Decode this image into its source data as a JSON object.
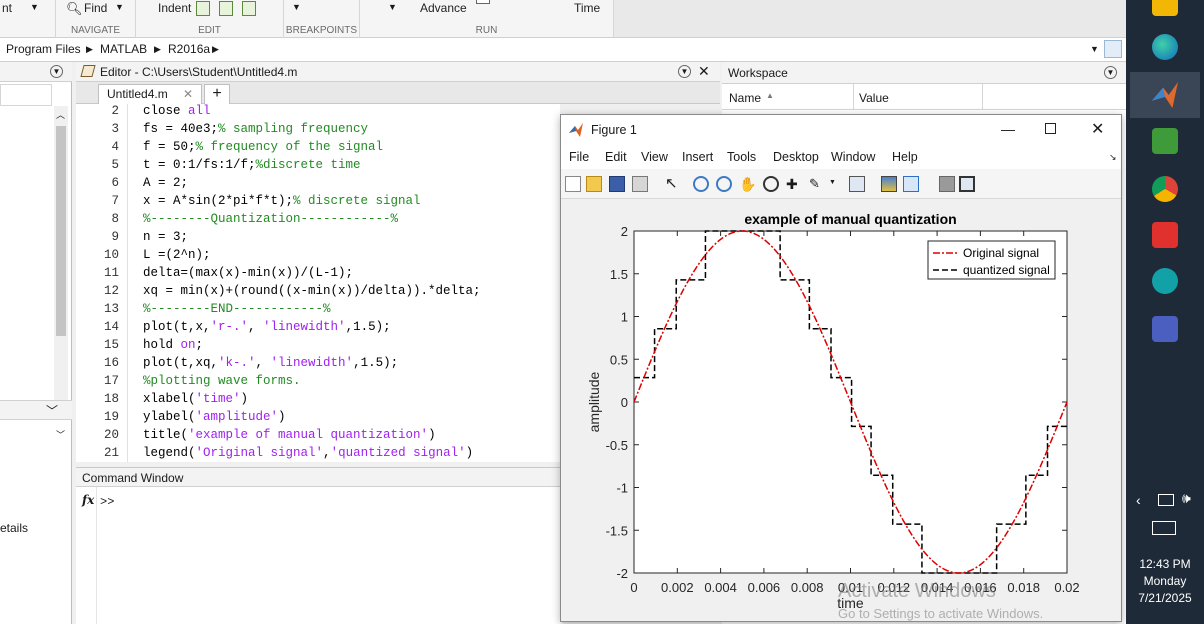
{
  "toolstrip": {
    "nt_label": "nt",
    "find_label": "Find",
    "indent_label": "Indent",
    "advance_label": "Advance",
    "time_label": "Time",
    "groups": [
      "NAVIGATE",
      "EDIT",
      "BREAKPOINTS",
      "RUN"
    ]
  },
  "address": {
    "program_files": "Program Files",
    "matlab": "MATLAB",
    "version": "R2016a"
  },
  "left_panel": {
    "details_label": "etails"
  },
  "editor": {
    "title": "Editor - C:\\Users\\Student\\Untitled4.m",
    "tab_label": "Untitled4.m",
    "line_numbers": [
      "2",
      "3",
      "4",
      "5",
      "6",
      "7",
      "8",
      "9",
      "10",
      "11",
      "12",
      "13",
      "14",
      "15",
      "16",
      "17",
      "18",
      "19",
      "20",
      "21"
    ]
  },
  "command_window": {
    "title": "Command Window",
    "fx_label": "fx",
    "prompt": ">>"
  },
  "workspace": {
    "title": "Workspace",
    "col_name": "Name",
    "col_value": "Value"
  },
  "figure": {
    "title": "Figure 1",
    "menu": [
      "File",
      "Edit",
      "View",
      "Insert",
      "Tools",
      "Desktop",
      "Window",
      "Help"
    ]
  },
  "chart_data": {
    "type": "line",
    "title": "example of manual quantization",
    "xlabel": "time",
    "ylabel": "amplitude",
    "xlim": [
      0,
      0.02
    ],
    "ylim": [
      -2,
      2
    ],
    "xticks": [
      "0",
      "0.002",
      "0.004",
      "0.006",
      "0.008",
      "0.01",
      "0.012",
      "0.014",
      "0.016",
      "0.018",
      "0.02"
    ],
    "yticks": [
      "2",
      "1.5",
      "1",
      "0.5",
      "0",
      "-0.5",
      "-1",
      "-1.5",
      "-2"
    ],
    "legend_position": "top-right",
    "series": [
      {
        "name": "Original signal",
        "style": "r-.",
        "color": "#dd0000",
        "formula": "2*sin(2*pi*50*t)"
      },
      {
        "name": "quantized signal",
        "style": "k-.",
        "color": "#000000",
        "levels": [
          -2,
          -1.4286,
          -0.8571,
          -0.2857,
          0.2857,
          0.8571,
          1.4286,
          2
        ]
      }
    ]
  },
  "taskbar": {
    "time": "12:43 PM",
    "day": "Monday",
    "date": "7/21/2025"
  },
  "watermark": {
    "line1": "Activate Windows",
    "line2": "Go to Settings to activate Windows."
  }
}
